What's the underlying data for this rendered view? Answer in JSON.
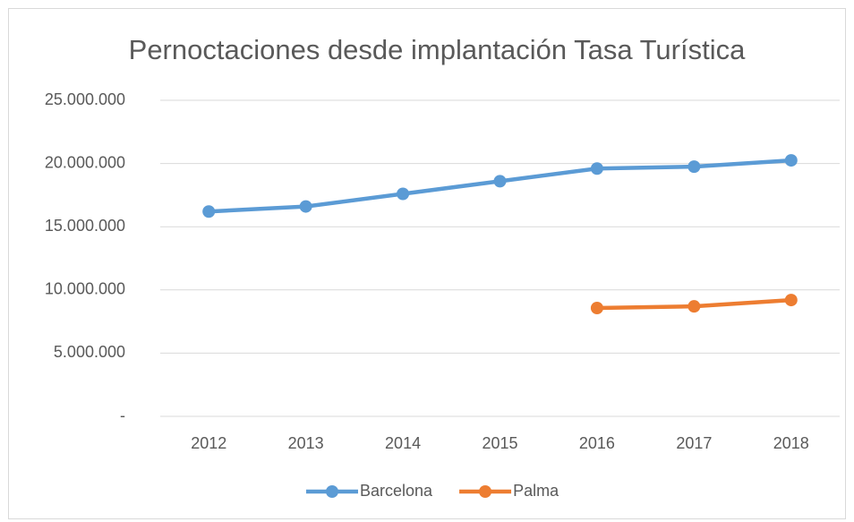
{
  "chart_data": {
    "type": "line",
    "title": "Pernoctaciones desde implantación Tasa Turística",
    "categories": [
      "2012",
      "2013",
      "2014",
      "2015",
      "2016",
      "2017",
      "2018"
    ],
    "series": [
      {
        "name": "Barcelona",
        "color": "#5b9bd5",
        "values": [
          16200000,
          16600000,
          17600000,
          18600000,
          19600000,
          19750000,
          20250000
        ]
      },
      {
        "name": "Palma",
        "color": "#ed7d31",
        "values": [
          null,
          null,
          null,
          null,
          8570000,
          8700000,
          9200000
        ]
      }
    ],
    "ylim": [
      0,
      25000000
    ],
    "yticks": [
      {
        "value": 0,
        "label": "-"
      },
      {
        "value": 5000000,
        "label": "5.000.000"
      },
      {
        "value": 10000000,
        "label": "10.000.000"
      },
      {
        "value": 15000000,
        "label": "15.000.000"
      },
      {
        "value": 20000000,
        "label": "20.000.000"
      },
      {
        "value": 25000000,
        "label": "25.000.000"
      }
    ],
    "grid": true,
    "legend": "bottom"
  }
}
